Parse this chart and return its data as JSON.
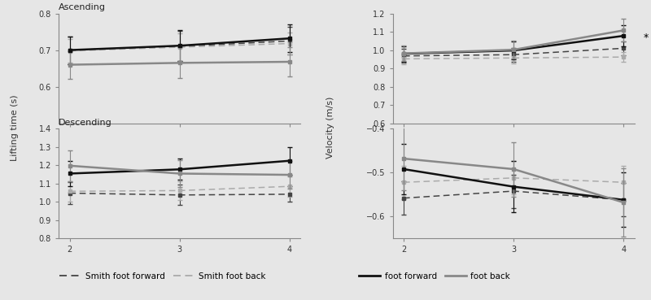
{
  "x": [
    2,
    3,
    4
  ],
  "background_color": "#e6e6e6",
  "asc_lifting_smith_ff": [
    0.7,
    0.71,
    0.725
  ],
  "asc_lifting_smith_ff_err": [
    0.038,
    0.042,
    0.038
  ],
  "asc_lifting_smith_fb": [
    0.698,
    0.708,
    0.718
  ],
  "asc_lifting_smith_fb_err": [
    0.032,
    0.038,
    0.03
  ],
  "asc_lifting_ff": [
    0.7,
    0.712,
    0.732
  ],
  "asc_lifting_ff_err": [
    0.038,
    0.042,
    0.038
  ],
  "asc_lifting_fb": [
    0.66,
    0.665,
    0.668
  ],
  "asc_lifting_fb_err": [
    0.038,
    0.042,
    0.04
  ],
  "desc_lifting_smith_ff": [
    1.048,
    1.038,
    1.042
  ],
  "desc_lifting_smith_ff_err": [
    0.06,
    0.055,
    0.042
  ],
  "desc_lifting_smith_fb": [
    1.058,
    1.062,
    1.085
  ],
  "desc_lifting_smith_fb_err": [
    0.055,
    0.052,
    0.055
  ],
  "desc_lifting_ff": [
    1.155,
    1.178,
    1.225
  ],
  "desc_lifting_ff_err": [
    0.07,
    0.058,
    0.075
  ],
  "desc_lifting_fb": [
    1.198,
    1.155,
    1.148
  ],
  "desc_lifting_fb_err": [
    0.085,
    0.072,
    0.075
  ],
  "asc_vel_smith_ff": [
    0.968,
    0.975,
    1.01
  ],
  "asc_vel_smith_ff_err": [
    0.038,
    0.038,
    0.038
  ],
  "asc_vel_smith_fb": [
    0.952,
    0.957,
    0.962
  ],
  "asc_vel_smith_fb_err": [
    0.028,
    0.028,
    0.028
  ],
  "asc_vel_ff": [
    0.98,
    0.998,
    1.078
  ],
  "asc_vel_ff_err": [
    0.042,
    0.048,
    0.058
  ],
  "asc_vel_fb": [
    0.982,
    1.002,
    1.108
  ],
  "asc_vel_fb_err": [
    0.042,
    0.048,
    0.062
  ],
  "desc_vel_smith_ff": [
    -0.558,
    -0.542,
    -0.562
  ],
  "desc_vel_smith_ff_err": [
    0.038,
    0.038,
    0.038
  ],
  "desc_vel_smith_fb": [
    -0.522,
    -0.512,
    -0.522
  ],
  "desc_vel_smith_fb_err": [
    0.038,
    0.038,
    0.038
  ],
  "desc_vel_ff": [
    -0.492,
    -0.532,
    -0.562
  ],
  "desc_vel_ff_err": [
    0.058,
    0.058,
    0.062
  ],
  "desc_vel_fb": [
    -0.468,
    -0.492,
    -0.568
  ],
  "desc_vel_fb_err": [
    0.072,
    0.062,
    0.078
  ],
  "color_smith_ff": "#444444",
  "color_smith_fb": "#aaaaaa",
  "color_ff": "#111111",
  "color_fb": "#888888",
  "ylabel_left": "Lifting time (s)",
  "ylabel_right": "Velocity (m/s)",
  "title_asc": "Ascending",
  "title_desc": "Descending",
  "asc_ylim": [
    0.5,
    0.8
  ],
  "asc_yticks": [
    0.6,
    0.7,
    0.8
  ],
  "desc_ylim": [
    0.8,
    1.4
  ],
  "desc_yticks": [
    0.8,
    0.9,
    1.0,
    1.1,
    1.2,
    1.3,
    1.4
  ],
  "asc_vel_ylim": [
    0.6,
    1.2
  ],
  "asc_vel_yticks": [
    0.6,
    0.7,
    0.8,
    0.9,
    1.0,
    1.1,
    1.2
  ],
  "desc_vel_ylim": [
    -0.65,
    -0.4
  ],
  "desc_vel_yticks": [
    -0.6,
    -0.5,
    -0.4
  ]
}
